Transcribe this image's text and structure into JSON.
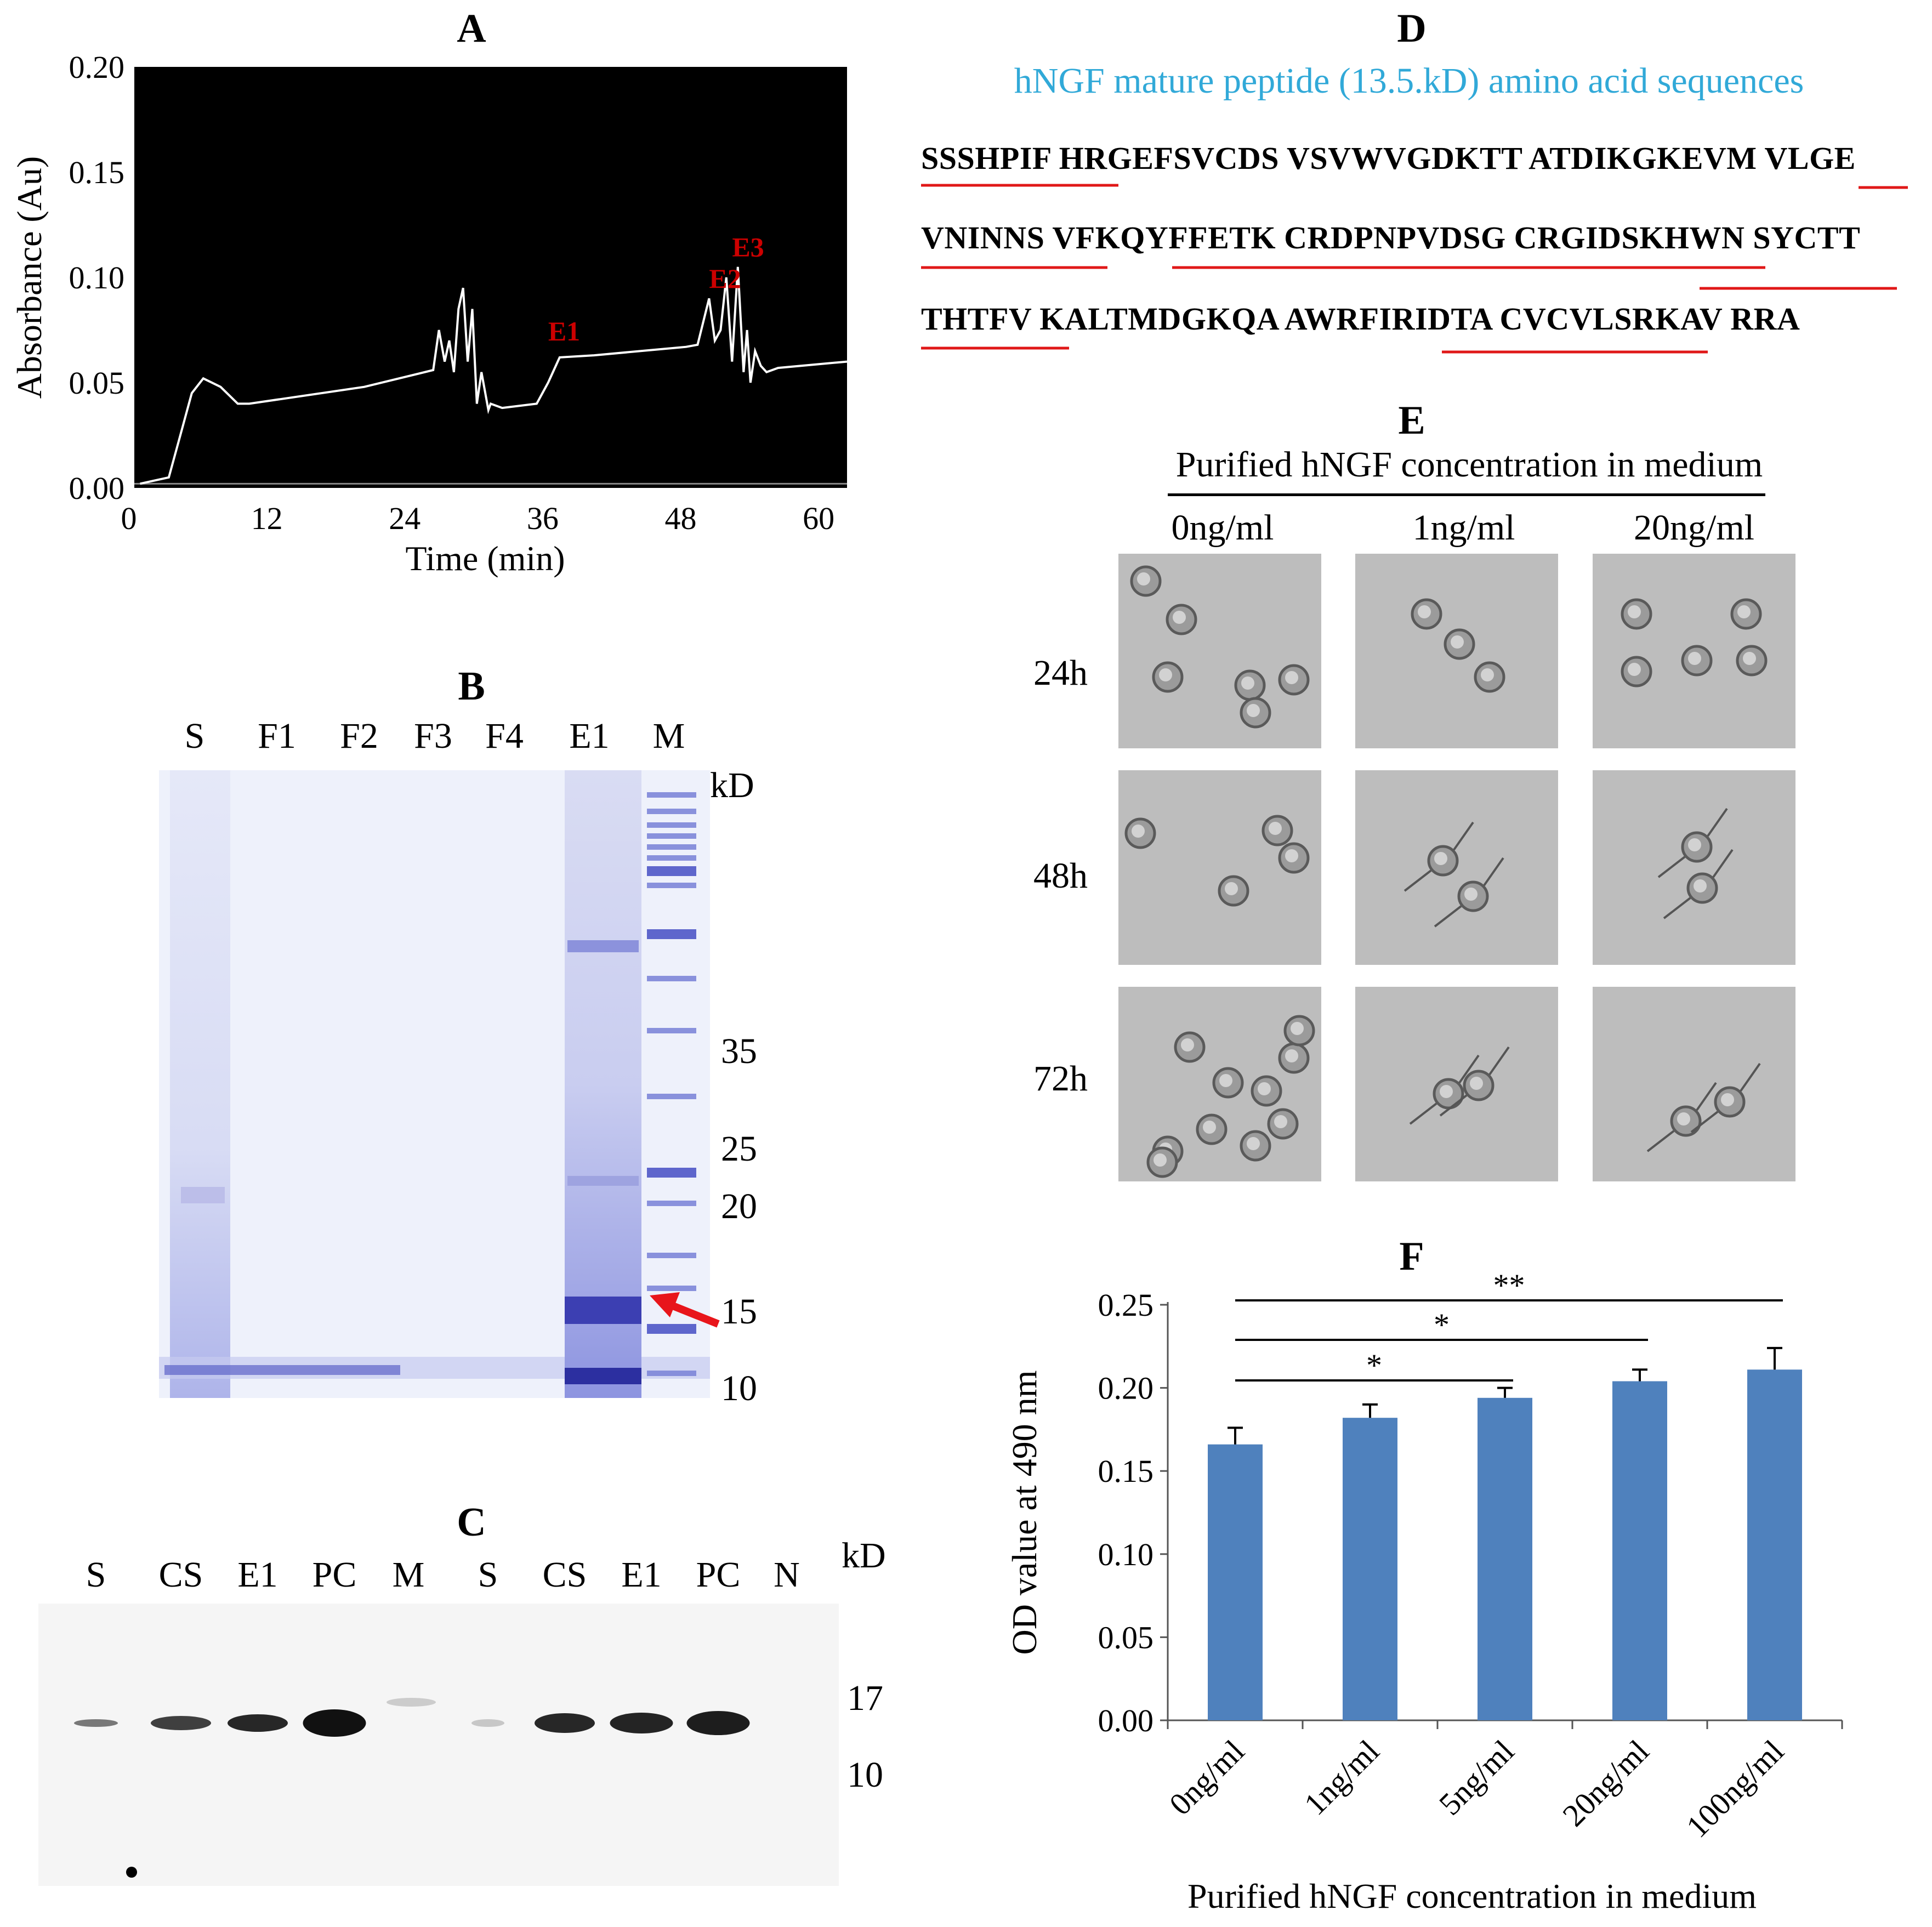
{
  "panels": {
    "A": {
      "label": "A",
      "ylabel": "Absorbance (Au)",
      "xlabel": "Time (min)",
      "yticks": [
        "0.20",
        "0.15",
        "0.10",
        "0.05",
        "0.00"
      ],
      "xticks": [
        "0",
        "12",
        "24",
        "36",
        "48",
        "60"
      ],
      "peaks": [
        "E1",
        "E2",
        "E3"
      ]
    },
    "B": {
      "label": "B",
      "lanes": [
        "S",
        "F1",
        "F2",
        "F3",
        "F4",
        "E1",
        "M"
      ],
      "unit": "kD",
      "markers": [
        "35",
        "25",
        "20",
        "15",
        "10"
      ]
    },
    "C": {
      "label": "C",
      "lanes": [
        "S",
        "CS",
        "E1",
        "PC",
        "M",
        "S",
        "CS",
        "E1",
        "PC",
        "N"
      ],
      "unit": "kD",
      "markers": [
        "17",
        "10"
      ]
    },
    "D": {
      "label": "D",
      "title": "hNGF mature peptide (13.5.kD) amino acid sequences",
      "lines": [
        "SSSHPIF HRGEFSVCDS VSVWVGDKTT ATDIKGKEVM VLGE",
        "VNINNS VFKQYFFETK CRDPNPVDSG CRGIDSKHWN SYCTT",
        "THTFV KALTMDGKQA AWRFIRIDTA CVCVLSRKAV RRA"
      ]
    },
    "E": {
      "label": "E",
      "title": "Purified hNGF concentration in medium",
      "columns": [
        "0ng/ml",
        "1ng/ml",
        "20ng/ml"
      ],
      "rows": [
        "24h",
        "48h",
        "72h"
      ]
    },
    "F": {
      "label": "F",
      "significance": [
        "**",
        "*",
        "*"
      ]
    }
  },
  "chart_data": [
    {
      "type": "line",
      "panel": "A",
      "title": "",
      "xlabel": "Time (min)",
      "ylabel": "Absorbance (Au)",
      "xlim": [
        0,
        62
      ],
      "ylim": [
        0,
        0.2
      ],
      "background": "#000000",
      "line_color": "#ffffff",
      "annotation_color": "#cc0000",
      "annotations": [
        {
          "text": "E1",
          "x": 36,
          "y": 0.07
        },
        {
          "text": "E2",
          "x": 50,
          "y": 0.095
        },
        {
          "text": "E3",
          "x": 52,
          "y": 0.11
        }
      ],
      "series": [
        {
          "x": [
            0.5,
            3,
            4,
            5,
            6,
            7.5,
            9,
            10,
            20,
            26,
            26.5,
            27,
            27.4,
            27.8,
            28.2,
            28.6,
            29,
            29.4,
            29.8,
            30.2,
            30.8,
            31,
            32,
            35,
            36,
            37,
            40,
            48,
            49,
            50,
            50.5,
            51,
            51.5,
            52,
            52.5,
            53,
            53.3,
            53.6,
            54,
            54.5,
            55,
            56,
            62
          ],
          "y": [
            0.002,
            0.005,
            0.025,
            0.045,
            0.052,
            0.048,
            0.04,
            0.04,
            0.048,
            0.056,
            0.075,
            0.06,
            0.07,
            0.055,
            0.085,
            0.095,
            0.06,
            0.085,
            0.04,
            0.055,
            0.037,
            0.04,
            0.038,
            0.04,
            0.05,
            0.062,
            0.063,
            0.067,
            0.068,
            0.09,
            0.07,
            0.075,
            0.1,
            0.06,
            0.105,
            0.055,
            0.075,
            0.05,
            0.065,
            0.058,
            0.055,
            0.057,
            0.06
          ]
        }
      ]
    },
    {
      "type": "bar",
      "panel": "F",
      "title": "",
      "xlabel": "Purified hNGF concentration in medium",
      "ylabel": "OD value at 490 nm",
      "categories": [
        "0ng/ml",
        "1ng/ml",
        "5ng/ml",
        "20ng/ml",
        "100ng/ml"
      ],
      "values": [
        0.166,
        0.182,
        0.194,
        0.204,
        0.211
      ],
      "errors": [
        0.01,
        0.008,
        0.006,
        0.007,
        0.013
      ],
      "ylim": [
        0,
        0.25
      ],
      "yticks": [
        "0.00",
        "0.05",
        "0.10",
        "0.15",
        "0.20",
        "0.25"
      ],
      "bar_color": "#4f81bd",
      "significance": [
        {
          "from": 0,
          "to": 4,
          "label": "**"
        },
        {
          "from": 0,
          "to": 3,
          "label": "*"
        },
        {
          "from": 0,
          "to": 2,
          "label": "*"
        }
      ]
    }
  ]
}
